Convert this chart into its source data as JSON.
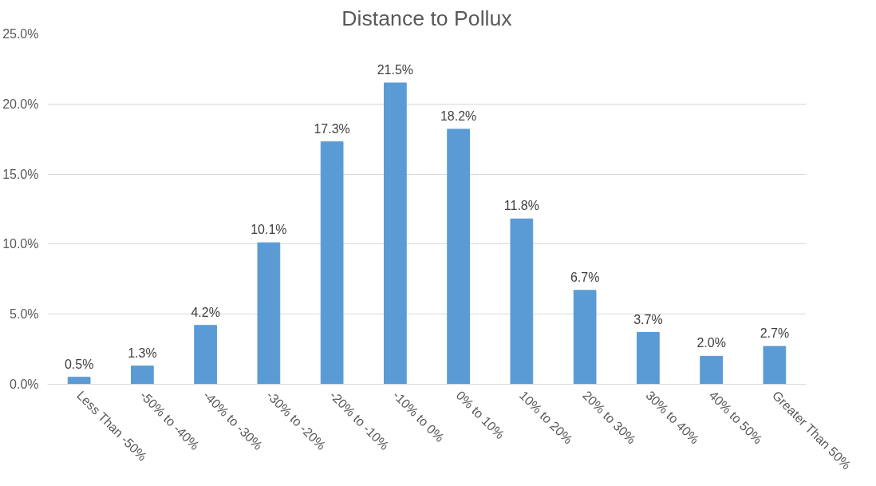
{
  "chart_data": {
    "type": "bar",
    "title": "Distance to Pollux",
    "categories": [
      "Less Than -50%",
      "-50% to -40%",
      "-40% to -30%",
      "-30% to -20%",
      "-20% to -10%",
      "-10% to 0%",
      "0% to 10%",
      "10% to 20%",
      "20% to 30%",
      "30% to 40%",
      "40% to 50%",
      "Greater Than 50%"
    ],
    "series": [
      {
        "color": "#5b9bd5",
        "values": [
          0.5,
          1.3,
          4.2,
          10.1,
          17.3,
          21.5,
          18.2,
          11.8,
          6.7,
          3.7,
          2.0,
          2.7
        ],
        "value_labels": [
          "0.5%",
          "1.3%",
          "4.2%",
          "10.1%",
          "17.3%",
          "21.5%",
          "18.2%",
          "11.8%",
          "6.7%",
          "3.7%",
          "2.0%",
          "2.7%"
        ]
      }
    ],
    "ylim": [
      0,
      25
    ],
    "yticks": [
      {
        "value": 0,
        "label": "0.0%"
      },
      {
        "value": 5,
        "label": "5.0%"
      },
      {
        "value": 10,
        "label": "10.0%"
      },
      {
        "value": 15,
        "label": "15.0%"
      },
      {
        "value": 20,
        "label": "20.0%"
      },
      {
        "value": 25,
        "label": "25.0%"
      }
    ],
    "grid": "y"
  }
}
